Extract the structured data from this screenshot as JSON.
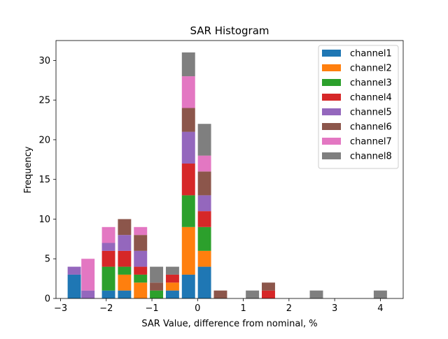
{
  "chart_data": {
    "type": "bar",
    "subtype": "stacked-histogram",
    "title": "SAR Histogram",
    "xlabel": "SAR Value, difference from nominal, %",
    "ylabel": "Frequency",
    "xlim": [
      -3.1,
      4.5
    ],
    "ylim": [
      0,
      32.5
    ],
    "xticks": [
      -3,
      -2,
      -1,
      0,
      1,
      2,
      3,
      4
    ],
    "yticks": [
      0,
      5,
      10,
      15,
      20,
      25,
      30
    ],
    "xtick_labels": [
      "−3",
      "−2",
      "−1",
      "0",
      "1",
      "2",
      "3",
      "4"
    ],
    "ytick_labels": [
      "0",
      "5",
      "10",
      "15",
      "20",
      "25",
      "30"
    ],
    "bin_width": 0.29,
    "bin_centers": [
      -2.7,
      -2.4,
      -1.95,
      -1.6,
      -1.25,
      -0.9,
      -0.55,
      -0.2,
      0.15,
      0.5,
      1.2,
      1.55,
      2.6,
      4.0
    ],
    "legend_position": "top-right",
    "series": [
      {
        "name": "channel1",
        "color": "#1f77b4",
        "values": [
          3,
          0,
          1,
          1,
          0,
          0,
          1,
          3,
          4,
          0,
          0,
          0,
          0,
          0
        ]
      },
      {
        "name": "channel2",
        "color": "#ff7f0e",
        "values": [
          0,
          0,
          0,
          2,
          2,
          0,
          1,
          6,
          2,
          0,
          0,
          0,
          0,
          0
        ]
      },
      {
        "name": "channel3",
        "color": "#2ca02c",
        "values": [
          0,
          0,
          3,
          1,
          1,
          1,
          0,
          4,
          3,
          0,
          0,
          0,
          0,
          0
        ]
      },
      {
        "name": "channel4",
        "color": "#d62728",
        "values": [
          0,
          0,
          2,
          2,
          1,
          0,
          1,
          4,
          2,
          0,
          0,
          1,
          0,
          0
        ]
      },
      {
        "name": "channel5",
        "color": "#9467bd",
        "values": [
          1,
          1,
          1,
          2,
          2,
          0,
          0,
          4,
          2,
          0,
          0,
          0,
          0,
          0
        ]
      },
      {
        "name": "channel6",
        "color": "#8c564b",
        "values": [
          0,
          0,
          0,
          2,
          2,
          1,
          0,
          3,
          3,
          1,
          0,
          1,
          0,
          0
        ]
      },
      {
        "name": "channel7",
        "color": "#e377c2",
        "values": [
          0,
          4,
          2,
          0,
          1,
          0,
          0,
          4,
          2,
          0,
          0,
          0,
          0,
          0
        ]
      },
      {
        "name": "channel8",
        "color": "#7f7f7f",
        "values": [
          0,
          0,
          0,
          0,
          0,
          2,
          1,
          3,
          4,
          0,
          1,
          0,
          1,
          1
        ]
      }
    ]
  }
}
